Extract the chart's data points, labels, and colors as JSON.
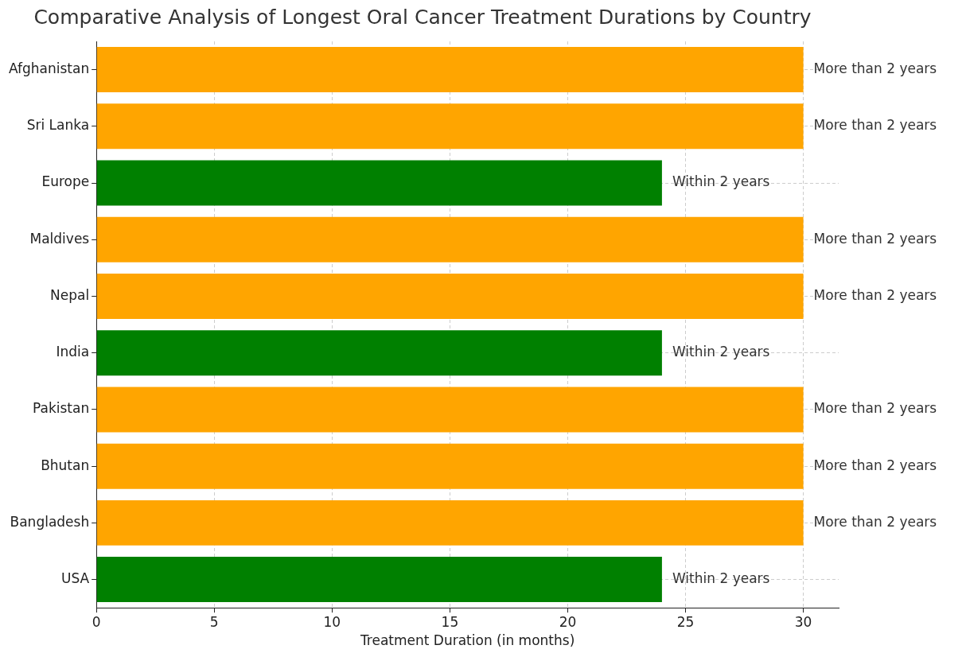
{
  "chart_data": {
    "type": "bar",
    "orientation": "horizontal",
    "title": "Comparative Analysis of Longest Oral Cancer Treatment Durations by Country",
    "xlabel": "Treatment Duration (in months)",
    "categories": [
      "Afghanistan",
      "Sri Lanka",
      "Europe",
      "Maldives",
      "Nepal",
      "India",
      "Pakistan",
      "Bhutan",
      "Bangladesh",
      "USA"
    ],
    "values": [
      30,
      30,
      24,
      30,
      30,
      24,
      30,
      30,
      30,
      24
    ],
    "colors": [
      "#ffa500",
      "#ffa500",
      "#008000",
      "#ffa500",
      "#ffa500",
      "#008000",
      "#ffa500",
      "#ffa500",
      "#ffa500",
      "#008000"
    ],
    "value_labels": [
      "More than 2 years",
      "More than 2 years",
      "Within 2 years",
      "More than 2 years",
      "More than 2 years",
      "Within 2 years",
      "More than 2 years",
      "More than 2 years",
      "More than 2 years",
      "Within 2 years"
    ],
    "xlim": [
      0,
      31.5
    ],
    "xticks": [
      0,
      5,
      10,
      15,
      20,
      25,
      30
    ],
    "grid": true,
    "legend": false
  }
}
